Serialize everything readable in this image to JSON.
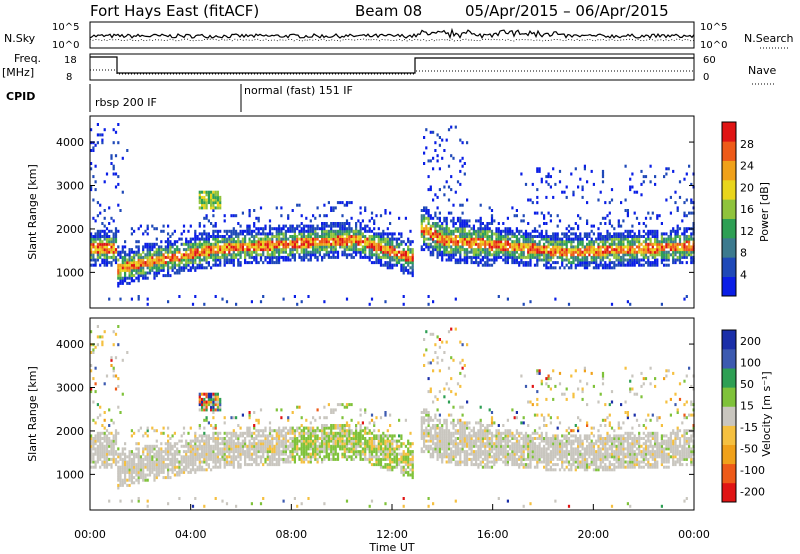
{
  "header": {
    "station": "Fort Hays East (fitACF)",
    "beam": "Beam 08",
    "dates": "05/Apr/2015 – 06/Apr/2015"
  },
  "strips": {
    "nsky_label": "N.Sky",
    "nsky_ticks": [
      "10^5",
      "10^0"
    ],
    "nsearch_label": "N.Search",
    "nsearch_ticks": [
      "10^5",
      "10^0"
    ],
    "freq_label_line1": "Freq.",
    "freq_label_line2": "[MHz]",
    "freq_ticks": [
      "18",
      "8"
    ],
    "nave_label": "Nave",
    "nave_ticks": [
      "60",
      "0"
    ],
    "cpid_label": "CPID",
    "cpid_segments": [
      {
        "label": "rbsp 200 IF",
        "start_hour": 0
      },
      {
        "label": "normal (fast) 151 IF",
        "start_hour": 6
      }
    ]
  },
  "chart_data": [
    {
      "type": "heatmap",
      "name": "power",
      "ylabel": "Slant Range [km]",
      "xlabel": "",
      "xlim_hours": [
        0,
        24
      ],
      "ylim": [
        180,
        4600
      ],
      "yticks": [
        1000,
        2000,
        3000,
        4000
      ],
      "colorbar_label": "Power [dB]",
      "colorbar_ticks": [
        28,
        24,
        20,
        16,
        12,
        8,
        4
      ],
      "colorbar_range": [
        0,
        32
      ],
      "colors": [
        "#0a1ee6",
        "#1f49b8",
        "#3c7a8e",
        "#2e9f54",
        "#8fc33c",
        "#e9d51c",
        "#f0a11a",
        "#ee5a18",
        "#e01414"
      ]
    },
    {
      "type": "heatmap",
      "name": "velocity",
      "ylabel": "Slant Range [km]",
      "xlabel": "Time UT",
      "xlim_hours": [
        0,
        24
      ],
      "ylim": [
        180,
        4600
      ],
      "yticks": [
        1000,
        2000,
        3000,
        4000
      ],
      "xtick_labels": [
        "00:00",
        "04:00",
        "08:00",
        "12:00",
        "16:00",
        "20:00",
        "00:00"
      ],
      "colorbar_label": "Velocity [m s⁻¹]",
      "colorbar_ticks": [
        200,
        100,
        50,
        15,
        -15,
        -50,
        -100,
        -200
      ],
      "colors": [
        "#e01414",
        "#ee5a18",
        "#f0a11a",
        "#f5c040",
        "#c9c6bf",
        "#7fc23a",
        "#2e9f54",
        "#3c5ab0",
        "#1a2ea8"
      ]
    }
  ]
}
